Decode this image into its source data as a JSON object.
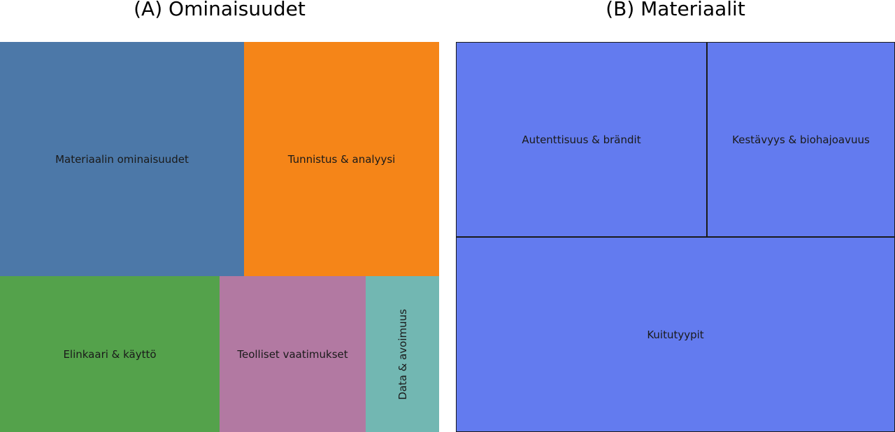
{
  "panels": {
    "a_title": "(A) Ominaisuudet",
    "b_title": "(B) Materiaalit"
  },
  "chart_data": [
    {
      "type": "treemap",
      "title": "(A) Ominaisuudet",
      "rows": [
        {
          "items": [
            {
              "label": "Materiaalin ominaisuudet",
              "value": 5,
              "color": "#4c78a8"
            },
            {
              "label": "Tunnistus & analyysi",
              "value": 4,
              "color": "#f58518"
            }
          ]
        },
        {
          "items": [
            {
              "label": "Elinkaari & käyttö",
              "value": 3,
              "color": "#54a24b"
            },
            {
              "label": "Teolliset vaatimukset",
              "value": 2,
              "color": "#b279a2"
            },
            {
              "label": "Data & avoimuus",
              "value": 1,
              "color": "#72b7b2",
              "vertical": true
            }
          ]
        }
      ]
    },
    {
      "type": "treemap",
      "title": "(B) Materiaalit",
      "rows": [
        {
          "items": [
            {
              "label": "Autenttisuus & brändit",
              "value": 4,
              "color": "#637bef"
            },
            {
              "label": "Kestävyys & biohajoavuus",
              "value": 3,
              "color": "#637bef"
            }
          ]
        },
        {
          "items": [
            {
              "label": "Kuitutyypit",
              "value": 7,
              "color": "#637bef"
            }
          ]
        }
      ]
    }
  ]
}
